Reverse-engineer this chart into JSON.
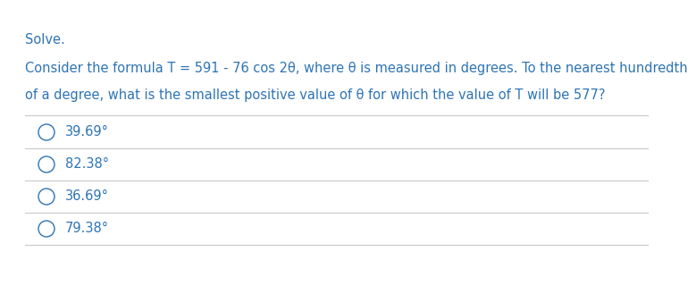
{
  "title": "Solve.",
  "question_line1": "Consider the formula T = 591 - 76 cos 2θ, where θ is measured in degrees. To the nearest hundredth",
  "question_line2": "of a degree, what is the smallest positive value of θ for which the value of T will be 577?",
  "choices": [
    "39.69°",
    "82.38°",
    "36.69°",
    "79.38°"
  ],
  "text_color": "#2E74B5",
  "bg_color": "#FFFFFF",
  "line_color": "#C8C8C8",
  "circle_color": "#2E74B5",
  "font_size_title": 10.5,
  "font_size_question": 10.5,
  "font_size_choices": 10.5
}
